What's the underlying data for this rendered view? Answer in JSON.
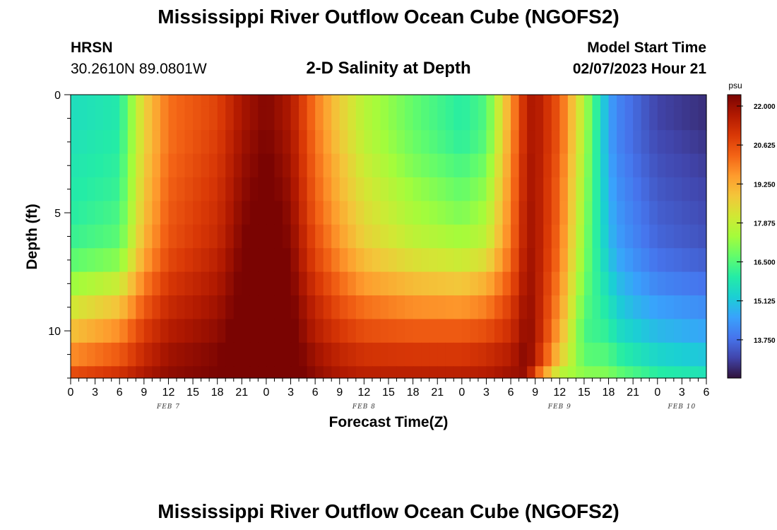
{
  "header": {
    "title": "Mississippi River Outflow Ocean Cube (NGOFS2)",
    "station": "HRSN",
    "coords": "30.2610N  89.0801W",
    "subtitle": "2-D Salinity at Depth",
    "model_start_label": "Model Start Time",
    "model_start_value": "02/07/2023 Hour 21"
  },
  "footer": {
    "title": "Mississippi River Outflow Ocean Cube (NGOFS2)"
  },
  "chart_data": {
    "type": "heatmap",
    "title": "2-D Salinity at Depth",
    "xlabel": "Forecast Time(Z)",
    "ylabel": "Depth (ft)",
    "x_ticks": [
      "0",
      "3",
      "6",
      "9",
      "12",
      "15",
      "18",
      "21",
      "0",
      "3",
      "6",
      "9",
      "12",
      "15",
      "18",
      "21",
      "0",
      "3",
      "6",
      "9",
      "12",
      "15",
      "18",
      "21",
      "0",
      "3",
      "6"
    ],
    "x_range_hours": [
      0,
      78
    ],
    "day_labels": [
      {
        "label": "FEB 7",
        "hour": 12
      },
      {
        "label": "FEB 8",
        "hour": 36
      },
      {
        "label": "FEB 9",
        "hour": 60
      },
      {
        "label": "FEB 10",
        "hour": 75
      }
    ],
    "y_ticks": [
      0,
      5,
      10
    ],
    "ylim": [
      0,
      12
    ],
    "colorbar": {
      "unit": "psu",
      "ticks": [
        "22.000",
        "20.625",
        "19.250",
        "17.875",
        "16.500",
        "15.125",
        "13.750"
      ],
      "range": [
        12.4,
        22.4
      ],
      "colors": [
        "#30123b",
        "#4145ab",
        "#4675ed",
        "#39a2fc",
        "#1bcfd4",
        "#24eca6",
        "#61fc6c",
        "#a4fc3b",
        "#d1e834",
        "#f3c63a",
        "#fe9b2d",
        "#f36315",
        "#d93806",
        "#b11901",
        "#7a0402"
      ]
    },
    "x_hours": [
      0,
      6,
      9,
      12,
      18,
      21,
      24,
      27,
      30,
      33,
      36,
      42,
      48,
      51,
      54,
      56,
      57,
      60,
      63,
      66,
      67,
      69,
      72,
      78
    ],
    "depth_rows": [
      0,
      1,
      2,
      3,
      4,
      5,
      6,
      7,
      8,
      9,
      10,
      11,
      12
    ],
    "salinity": [
      [
        15.6,
        15.9,
        18.6,
        20.1,
        20.8,
        21.8,
        22.3,
        21.7,
        20.0,
        18.7,
        17.7,
        16.7,
        16.0,
        16.5,
        19.5,
        21.6,
        21.8,
        20.4,
        17.6,
        14.6,
        14.1,
        13.7,
        13.1,
        12.8
      ],
      [
        15.6,
        15.9,
        18.6,
        20.1,
        20.8,
        21.8,
        22.3,
        21.7,
        20.0,
        18.7,
        17.7,
        16.7,
        16.0,
        16.5,
        19.5,
        21.6,
        21.8,
        20.4,
        17.6,
        14.6,
        14.1,
        13.7,
        13.1,
        12.8
      ],
      [
        15.7,
        16.0,
        18.6,
        20.1,
        20.9,
        21.9,
        22.4,
        21.8,
        20.1,
        18.8,
        17.8,
        16.8,
        16.1,
        16.6,
        19.6,
        21.6,
        21.8,
        20.4,
        17.5,
        14.6,
        14.1,
        13.7,
        13.2,
        12.9
      ],
      [
        15.8,
        16.1,
        18.7,
        20.2,
        21.0,
        22.0,
        22.5,
        21.9,
        20.2,
        19.0,
        18.0,
        17.0,
        16.4,
        16.9,
        19.7,
        21.7,
        21.8,
        20.3,
        17.4,
        14.7,
        14.2,
        13.8,
        13.3,
        13.0
      ],
      [
        15.9,
        16.2,
        18.8,
        20.3,
        21.1,
        22.1,
        22.6,
        22.0,
        20.3,
        19.1,
        18.2,
        17.3,
        16.7,
        17.2,
        19.8,
        21.7,
        21.8,
        20.2,
        17.3,
        14.8,
        14.3,
        13.9,
        13.4,
        13.1
      ],
      [
        16.0,
        16.4,
        18.9,
        20.4,
        21.2,
        22.2,
        22.7,
        22.1,
        20.4,
        19.3,
        18.4,
        17.5,
        17.0,
        17.5,
        19.9,
        21.8,
        21.8,
        20.2,
        17.2,
        14.9,
        14.4,
        14.0,
        13.5,
        13.2
      ],
      [
        16.2,
        16.6,
        19.1,
        20.5,
        21.3,
        22.3,
        22.8,
        22.2,
        20.6,
        19.5,
        18.6,
        17.8,
        17.4,
        17.8,
        20.0,
        21.8,
        21.8,
        20.1,
        17.1,
        15.0,
        14.5,
        14.1,
        13.6,
        13.3
      ],
      [
        16.6,
        17.1,
        19.4,
        20.7,
        21.5,
        22.4,
        22.9,
        22.3,
        20.8,
        19.8,
        19.0,
        18.3,
        18.0,
        18.4,
        20.2,
        21.9,
        21.8,
        20.0,
        17.0,
        15.2,
        14.7,
        14.3,
        13.8,
        13.5
      ],
      [
        17.3,
        18.0,
        19.9,
        21.0,
        21.7,
        22.5,
        23.0,
        22.4,
        21.1,
        20.2,
        19.5,
        19.0,
        18.8,
        19.2,
        20.5,
        22.0,
        21.8,
        19.8,
        16.8,
        15.5,
        15.0,
        14.6,
        14.1,
        13.8
      ],
      [
        18.1,
        18.9,
        20.4,
        21.3,
        21.9,
        22.6,
        23.1,
        22.5,
        21.4,
        20.6,
        20.1,
        19.7,
        19.6,
        19.9,
        20.9,
        22.1,
        21.8,
        19.6,
        16.6,
        15.8,
        15.3,
        14.9,
        14.5,
        14.2
      ],
      [
        18.9,
        19.7,
        20.9,
        21.6,
        22.1,
        22.7,
        23.2,
        22.6,
        21.6,
        21.0,
        20.6,
        20.4,
        20.4,
        20.6,
        21.2,
        22.2,
        21.8,
        19.3,
        16.4,
        16.1,
        15.6,
        15.3,
        14.9,
        14.6
      ],
      [
        19.7,
        20.4,
        21.3,
        21.9,
        22.3,
        22.8,
        23.3,
        22.7,
        21.9,
        21.4,
        21.1,
        21.0,
        21.0,
        21.2,
        21.6,
        22.3,
        21.6,
        18.8,
        16.6,
        16.5,
        16.1,
        15.8,
        15.4,
        15.1
      ],
      [
        20.6,
        21.1,
        21.7,
        22.1,
        22.4,
        22.9,
        23.4,
        22.8,
        22.1,
        21.7,
        21.5,
        21.5,
        21.5,
        21.6,
        21.9,
        22.1,
        20.6,
        17.8,
        17.1,
        17.0,
        16.7,
        16.4,
        16.0,
        15.7
      ]
    ]
  }
}
